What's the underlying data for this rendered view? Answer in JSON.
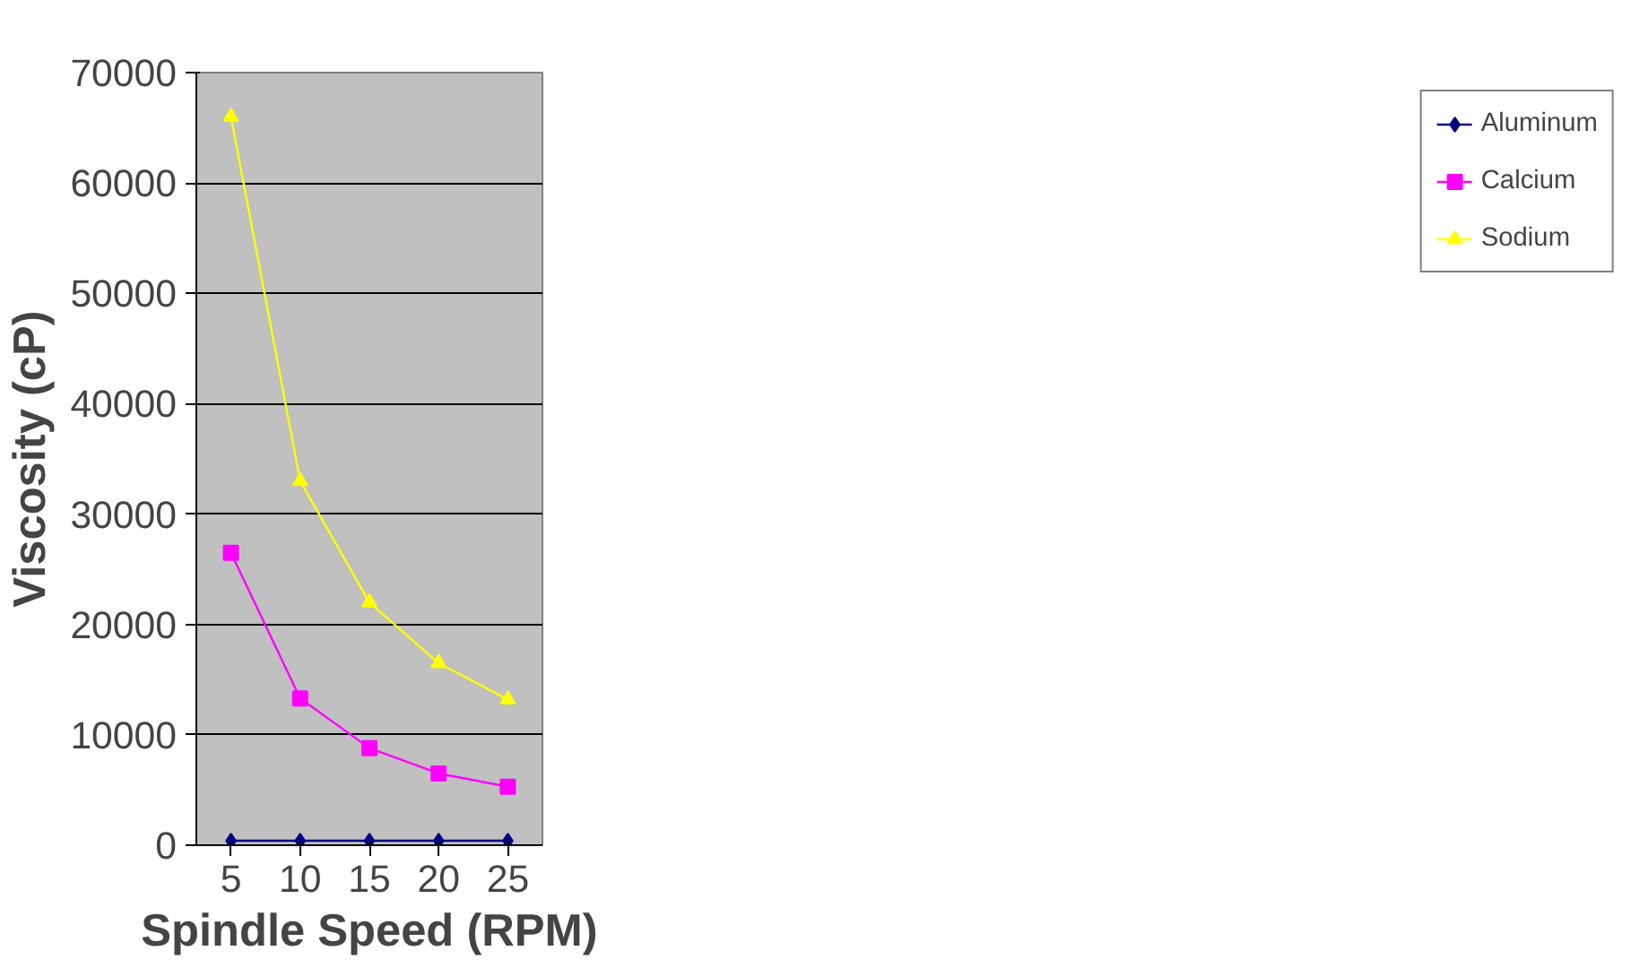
{
  "chart_data": {
    "type": "line",
    "xlabel": "Spindle Speed (RPM)",
    "ylabel": "Viscosity (cP)",
    "categories": [
      "5",
      "10",
      "15",
      "20",
      "25"
    ],
    "series": [
      {
        "name": "Aluminum",
        "color": "#000080",
        "marker": "diamond",
        "values": [
          400,
          400,
          400,
          400,
          400
        ]
      },
      {
        "name": "Calcium",
        "color": "#ff00ff",
        "marker": "square",
        "values": [
          26500,
          13300,
          8800,
          6500,
          5300
        ]
      },
      {
        "name": "Sodium",
        "color": "#ffff00",
        "marker": "triangle",
        "values": [
          66000,
          33000,
          22000,
          16500,
          13200
        ]
      }
    ],
    "ylim": [
      0,
      70000
    ],
    "yticks": [
      0,
      10000,
      20000,
      30000,
      40000,
      50000,
      60000,
      70000
    ],
    "grid": "y",
    "legend": "right",
    "line_style": "solid"
  }
}
